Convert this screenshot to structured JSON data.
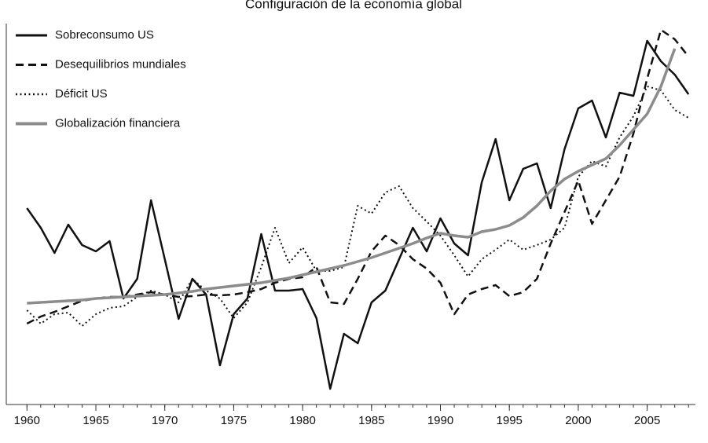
{
  "chart_data": {
    "type": "line",
    "title": "Configuración de la economía global",
    "x": [
      1960,
      1961,
      1962,
      1963,
      1964,
      1965,
      1966,
      1967,
      1968,
      1969,
      1970,
      1971,
      1972,
      1973,
      1974,
      1975,
      1976,
      1977,
      1978,
      1979,
      1980,
      1981,
      1982,
      1983,
      1984,
      1985,
      1986,
      1987,
      1988,
      1989,
      1990,
      1991,
      1992,
      1993,
      1994,
      1995,
      1996,
      1997,
      1998,
      1999,
      2000,
      2001,
      2002,
      2003,
      2004,
      2005,
      2006,
      2007,
      2008
    ],
    "series": [
      {
        "name": "Sobreconsumo US",
        "color": "#111111",
        "linestyle": "solid",
        "values": [
          50,
          45,
          38.6,
          45.8,
          40.6,
          39,
          41.6,
          27,
          32,
          52,
          37,
          21.8,
          32,
          28,
          10,
          23,
          27,
          43.4,
          29,
          29,
          29.4,
          22,
          4,
          18,
          15.6,
          26,
          29,
          37,
          45,
          39,
          47.4,
          41,
          38,
          56.6,
          67.6,
          52,
          60,
          61.4,
          50,
          65,
          75.4,
          77.4,
          68,
          79.4,
          78.6,
          92.6,
          87.4,
          84,
          79
        ]
      },
      {
        "name": "Desequilibrios mundiales",
        "color": "#111111",
        "linestyle": "dashed",
        "values": [
          20.6,
          22.4,
          23.6,
          25,
          26.4,
          27,
          27.4,
          27.4,
          28,
          28.6,
          28,
          27.4,
          27.6,
          28,
          27.8,
          28,
          28.6,
          29.4,
          31,
          32,
          32.4,
          35,
          26,
          25.6,
          32,
          39,
          43,
          40.6,
          37,
          34.6,
          31,
          23,
          28,
          29.4,
          30.4,
          27.6,
          28.6,
          32,
          41,
          49,
          57,
          46,
          52,
          58,
          69,
          83,
          95.4,
          93,
          88.6
        ]
      },
      {
        "name": "Déficit US",
        "color": "#111111",
        "linestyle": "dotted",
        "values": [
          24,
          20.6,
          23,
          23.4,
          20,
          23,
          24.6,
          25,
          27.4,
          29,
          28,
          26,
          32,
          29,
          27,
          22,
          26,
          35,
          45,
          36,
          40,
          34,
          34,
          35,
          50.6,
          48.6,
          54,
          55.6,
          50,
          46.6,
          43,
          38,
          32.6,
          37,
          39.4,
          42,
          39.4,
          40.6,
          42,
          45,
          58,
          62,
          60.6,
          68,
          73.4,
          81,
          80,
          75,
          73
        ]
      },
      {
        "name": "Globalización financiera",
        "color": "#8c8c8c",
        "linestyle": "solid",
        "values": [
          25.8,
          26,
          26.2,
          26.4,
          26.6,
          27,
          27.2,
          27.4,
          27.6,
          27.8,
          28,
          28.4,
          28.8,
          29.4,
          29.8,
          30.2,
          30.6,
          31,
          31.6,
          32.2,
          33,
          33.8,
          34.6,
          35.4,
          36.4,
          37.4,
          38.6,
          39.8,
          41,
          42.4,
          43.6,
          43,
          42.6,
          44,
          44.6,
          45.6,
          47.6,
          50.6,
          54.4,
          57.4,
          59.4,
          61,
          62.6,
          66,
          70,
          74,
          81,
          90.6,
          null
        ]
      }
    ],
    "xlim": [
      1958.5,
      2008.5
    ],
    "xticks": [
      1960,
      1965,
      1970,
      1975,
      1980,
      1985,
      1990,
      1995,
      2000,
      2005
    ],
    "ylim": [
      0,
      97
    ],
    "legend": "upper left"
  }
}
